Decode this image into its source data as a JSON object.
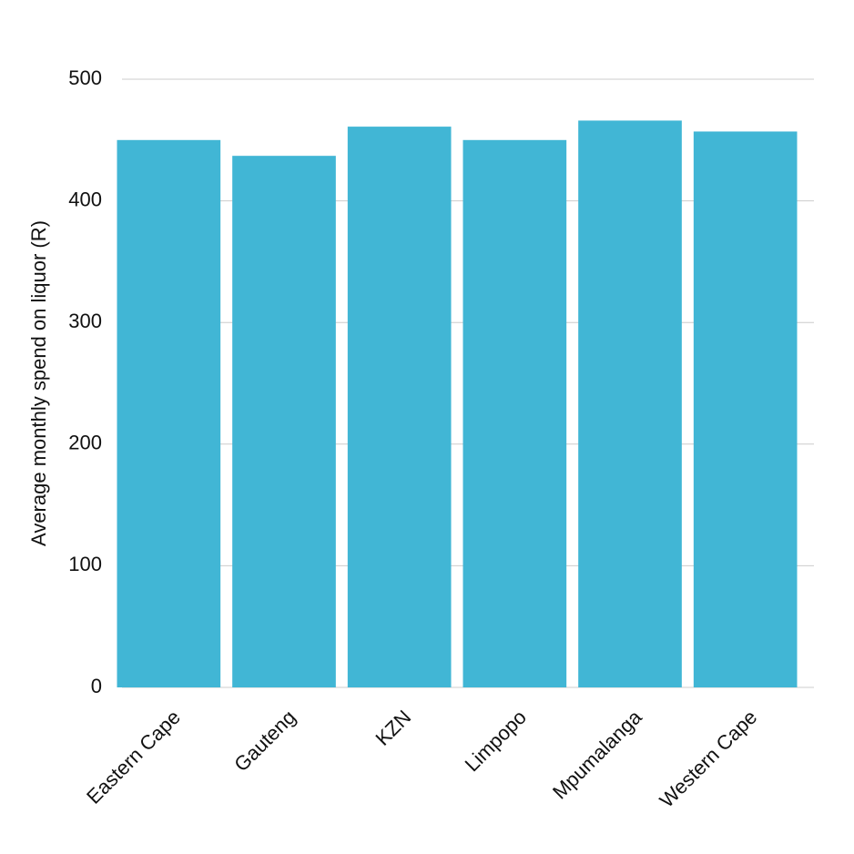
{
  "chart_data": {
    "type": "bar",
    "y_label": "Average monthly spend on liquor (R)",
    "categories": [
      "Eastern Cape",
      "Gauteng",
      "KZN",
      "Limpopo",
      "Mpumalanga",
      "Western Cape"
    ],
    "values": [
      450,
      437,
      461,
      450,
      466,
      457
    ],
    "color": "#41b6d5",
    "ylim": [
      0,
      500
    ],
    "yticks": [
      0,
      100,
      200,
      300,
      400,
      500
    ],
    "grid": true
  }
}
